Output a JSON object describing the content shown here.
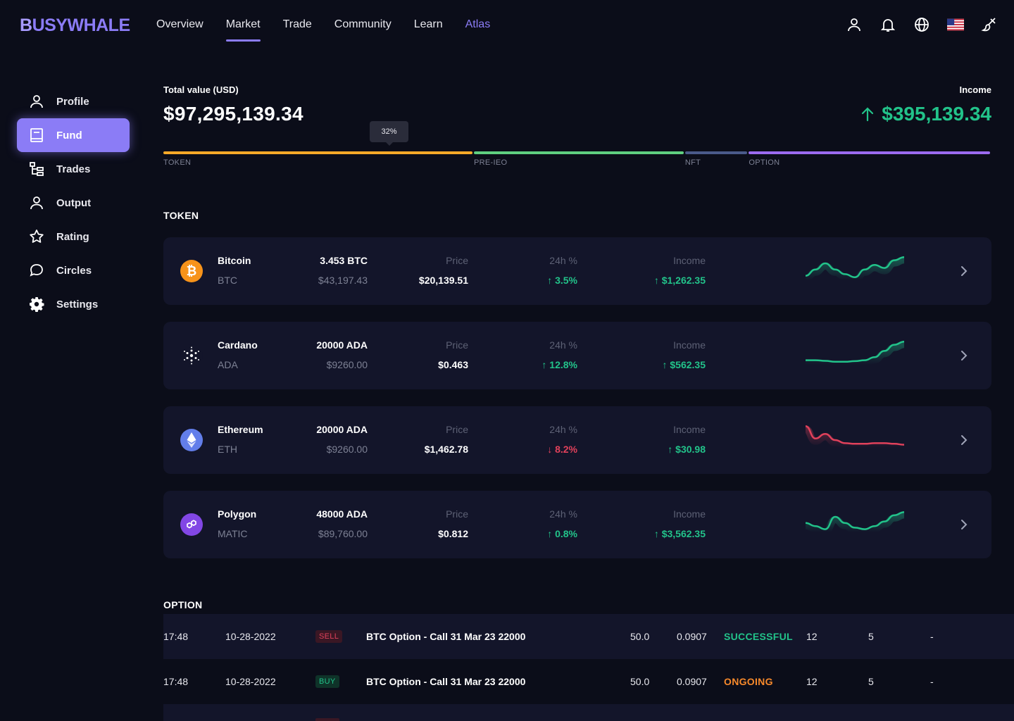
{
  "header": {
    "logo": {
      "first": "B",
      "rest": "USYWHALE"
    },
    "nav": [
      {
        "label": "Overview",
        "active": false
      },
      {
        "label": "Market",
        "active": true
      },
      {
        "label": "Trade",
        "active": false
      },
      {
        "label": "Community",
        "active": false
      },
      {
        "label": "Learn",
        "active": false
      },
      {
        "label": "Atlas",
        "active": false
      }
    ],
    "icons": [
      "user-icon",
      "bell-icon",
      "globe-icon",
      "us-flag-icon",
      "brush-icon"
    ]
  },
  "sidebar": {
    "items": [
      {
        "label": "Profile",
        "icon": "user-icon",
        "active": false
      },
      {
        "label": "Fund",
        "icon": "book-icon",
        "active": true
      },
      {
        "label": "Trades",
        "icon": "tree-icon",
        "active": false
      },
      {
        "label": "Output",
        "icon": "user-icon",
        "active": false
      },
      {
        "label": "Rating",
        "icon": "star-icon",
        "active": false
      },
      {
        "label": "Circles",
        "icon": "chat-icon",
        "active": false
      },
      {
        "label": "Settings",
        "icon": "gear-icon",
        "active": false
      }
    ]
  },
  "summary": {
    "total_label": "Total value (USD)",
    "total_value": "$97,295,139.34",
    "income_label": "Income",
    "income_value": "$395,139.34",
    "tooltip": "32%",
    "allocation": [
      {
        "label": "TOKEN",
        "share": 0.375,
        "color": "#f7a928"
      },
      {
        "label": "PRE-IEO",
        "share": 0.255,
        "color": "#5fcf80"
      },
      {
        "label": "NFT",
        "share": 0.077,
        "color": "#4a5a8a"
      },
      {
        "label": "OPTION",
        "share": 0.293,
        "color": "#9b6bf0"
      }
    ]
  },
  "token_section": {
    "title": "TOKEN",
    "price_label": "Price",
    "change_label": "24h %",
    "income_label": "Income",
    "rows": [
      {
        "name": "Bitcoin",
        "symbol": "BTC",
        "amount": "3.453 BTC",
        "usd": "$43,197.43",
        "price": "$20,139.51",
        "change": "3.5%",
        "direction": "up",
        "income": "$1,262.35",
        "icon": "bitcoin-icon",
        "trend": [
          0.35,
          0.55,
          0.75,
          0.55,
          0.4,
          0.3,
          0.55,
          0.7,
          0.6,
          0.85,
          0.95
        ]
      },
      {
        "name": "Cardano",
        "symbol": "ADA",
        "amount": "20000 ADA",
        "usd": "$9260.00",
        "price": "$0.463",
        "change": "12.8%",
        "direction": "up",
        "income": "$562.35",
        "icon": "cardano-icon",
        "trend": [
          0.35,
          0.35,
          0.33,
          0.3,
          0.3,
          0.32,
          0.35,
          0.45,
          0.65,
          0.85,
          0.95
        ]
      },
      {
        "name": "Ethereum",
        "symbol": "ETH",
        "amount": "20000 ADA",
        "usd": "$9260.00",
        "price": "$1,462.78",
        "change": "8.2%",
        "direction": "down",
        "income": "$30.98",
        "icon": "ethereum-icon",
        "trend": [
          0.95,
          0.55,
          0.7,
          0.5,
          0.4,
          0.38,
          0.38,
          0.4,
          0.4,
          0.38,
          0.35
        ]
      },
      {
        "name": "Polygon",
        "symbol": "MATIC",
        "amount": "48000 ADA",
        "usd": "$89,760.00",
        "price": "$0.812",
        "change": "0.8%",
        "direction": "up",
        "income": "$3,562.35",
        "icon": "polygon-icon",
        "trend": [
          0.55,
          0.45,
          0.35,
          0.75,
          0.55,
          0.4,
          0.35,
          0.45,
          0.6,
          0.8,
          0.9
        ]
      }
    ]
  },
  "option_section": {
    "title": "OPTION",
    "rows": [
      {
        "time": "17:48",
        "date": "10-28-2022",
        "side": "SELL",
        "title": "BTC Option - Call 31 Mar 23 22000",
        "amount": "50.0",
        "price": "0.0907",
        "status": "SUCCESSFUL",
        "status_color": "#22c38a",
        "col1": "12",
        "col2": "5",
        "col3": "-"
      },
      {
        "time": "17:48",
        "date": "10-28-2022",
        "side": "BUY",
        "title": "BTC Option - Call 31 Mar 23 22000",
        "amount": "50.0",
        "price": "0.0907",
        "status": "ONGOING",
        "status_color": "#f7892b",
        "col1": "12",
        "col2": "5",
        "col3": "-"
      }
    ]
  }
}
